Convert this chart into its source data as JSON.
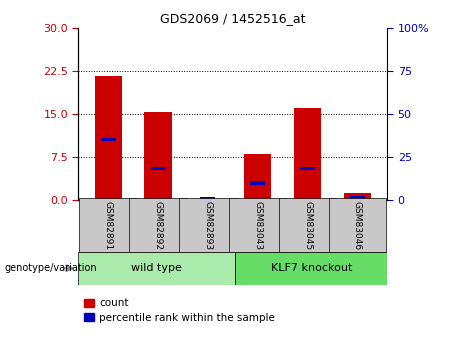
{
  "title": "GDS2069 / 1452516_at",
  "categories": [
    "GSM82891",
    "GSM82892",
    "GSM82893",
    "GSM83043",
    "GSM83045",
    "GSM83046"
  ],
  "red_values": [
    21.5,
    15.3,
    0.1,
    8.0,
    16.0,
    1.3
  ],
  "blue_values": [
    10.5,
    5.5,
    0.05,
    3.0,
    5.5,
    0.5
  ],
  "group_labels": [
    "wild type",
    "KLF7 knockout"
  ],
  "group_colors": [
    "#aaeaaa",
    "#66dd66"
  ],
  "yticks_left": [
    0,
    7.5,
    15,
    22.5,
    30
  ],
  "yticks_right": [
    0,
    25,
    50,
    75,
    100
  ],
  "ylim_left": [
    0,
    30
  ],
  "ylim_right": [
    0,
    100
  ],
  "bar_color_red": "#cc0000",
  "bar_color_blue": "#0000bb",
  "bar_width": 0.55,
  "tick_color_left": "#cc0000",
  "tick_color_right": "#0000bb",
  "legend_items": [
    "count",
    "percentile rank within the sample"
  ],
  "legend_colors": [
    "#cc0000",
    "#0000bb"
  ],
  "genotype_label": "genotype/variation",
  "tick_label_bg": "#c8c8c8",
  "blue_bar_height": 0.6
}
